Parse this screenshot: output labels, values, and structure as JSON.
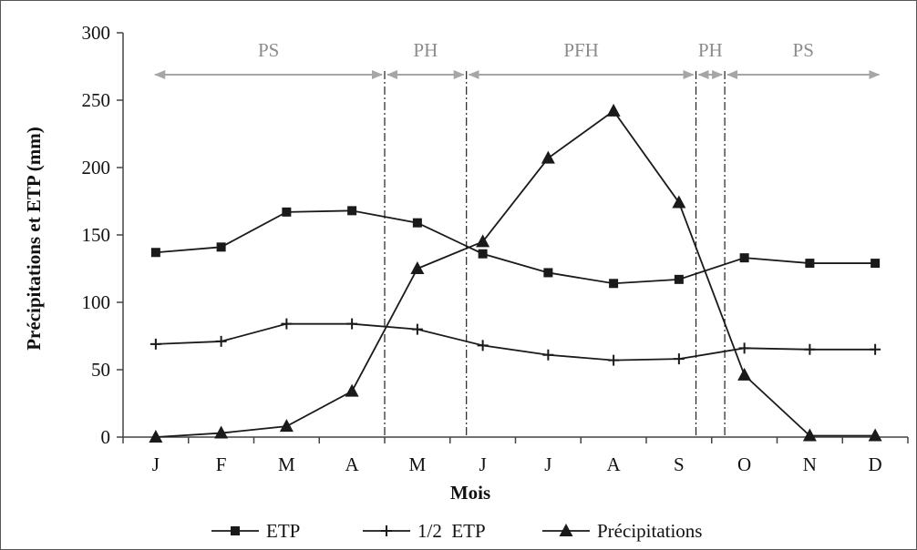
{
  "chart_data": {
    "type": "line",
    "categories": [
      "J",
      "F",
      "M",
      "A",
      "M",
      "J",
      "J",
      "A",
      "S",
      "O",
      "N",
      "D"
    ],
    "xlabel": "Mois",
    "ylabel": "Précipitations et ETP (mm)",
    "ylim": [
      0,
      300
    ],
    "yticks": [
      0,
      50,
      100,
      150,
      200,
      250,
      300
    ],
    "grid": false,
    "legend_position": "bottom",
    "series": [
      {
        "name": "ETP",
        "marker": "square",
        "values": [
          137,
          141,
          167,
          168,
          159,
          136,
          122,
          114,
          117,
          133,
          129,
          129
        ]
      },
      {
        "name": "1/2  ETP",
        "marker": "plus",
        "values": [
          69,
          71,
          84,
          84,
          80,
          68,
          61,
          57,
          58,
          66,
          65,
          65
        ]
      },
      {
        "name": "Précipitations",
        "marker": "triangle",
        "values": [
          0,
          3,
          8,
          34,
          125,
          145,
          207,
          242,
          174,
          46,
          1,
          1
        ]
      }
    ],
    "periods": [
      {
        "label": "PS",
        "from": -0.05,
        "to": 3.5
      },
      {
        "label": "PH",
        "from": 3.5,
        "to": 4.75
      },
      {
        "label": "PFH",
        "from": 4.75,
        "to": 8.26
      },
      {
        "label": "PH",
        "from": 8.26,
        "to": 8.7
      },
      {
        "label": "PS",
        "from": 8.7,
        "to": 11.1
      }
    ],
    "dividers": [
      3.5,
      4.75,
      8.26,
      8.7
    ],
    "colors": {
      "lines": "#1a1a1a",
      "periods": "#a6a6a6"
    }
  }
}
